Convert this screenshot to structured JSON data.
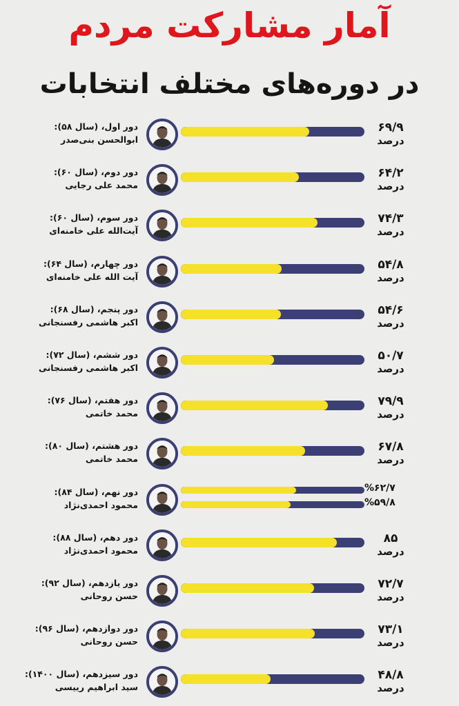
{
  "header": {
    "title": "آمار مشارکت مردم",
    "subtitle": "در دوره‌های مختلف انتخابات"
  },
  "colors": {
    "accent": "#e0161d",
    "track": "#3c3f73",
    "fill": "#f5e129",
    "background": "#ededeb"
  },
  "chart_data": {
    "type": "bar",
    "orientation": "horizontal",
    "title": "آمار مشارکت مردم",
    "subtitle": "در دوره‌های مختلف انتخابات",
    "xlim": [
      0,
      100
    ],
    "unit": "درصد",
    "rows": [
      {
        "period": "دور اول، (سال ۵۸):",
        "name": "ابوالحسن بنی‌صدر",
        "values": [
          69.9
        ],
        "labels": [
          "۶۹/۹"
        ],
        "unit_label": "درصد",
        "icon": "portrait-icon"
      },
      {
        "period": "دور دوم، (سال ۶۰):",
        "name": "محمد علی رجایی",
        "values": [
          64.2
        ],
        "labels": [
          "۶۴/۲"
        ],
        "unit_label": "درصد",
        "icon": "portrait-icon"
      },
      {
        "period": "دور سوم، (سال ۶۰):",
        "name": "آیت‌الله علی خامنه‌ای",
        "values": [
          74.3
        ],
        "labels": [
          "۷۴/۳"
        ],
        "unit_label": "درصد",
        "icon": "portrait-icon"
      },
      {
        "period": "دور چهارم، (سال ۶۴):",
        "name": "آیت الله علی خامنه‌ای",
        "values": [
          54.8
        ],
        "labels": [
          "۵۴/۸"
        ],
        "unit_label": "درصد",
        "icon": "portrait-icon"
      },
      {
        "period": "دور پنجم، (سال ۶۸):",
        "name": "اکبر هاشمی رفسنجانی",
        "values": [
          54.6
        ],
        "labels": [
          "۵۴/۶"
        ],
        "unit_label": "درصد",
        "icon": "portrait-icon"
      },
      {
        "period": "دور ششم، (سال ۷۲):",
        "name": "اکبر هاشمی رفسنجانی",
        "values": [
          50.7
        ],
        "labels": [
          "۵۰/۷"
        ],
        "unit_label": "درصد",
        "icon": "portrait-icon"
      },
      {
        "period": "دور هفتم، (سال ۷۶):",
        "name": "محمد خاتمی",
        "values": [
          79.9
        ],
        "labels": [
          "۷۹/۹"
        ],
        "unit_label": "درصد",
        "icon": "portrait-icon"
      },
      {
        "period": "دور هشتم، (سال ۸۰):",
        "name": "محمد خاتمی",
        "values": [
          67.8
        ],
        "labels": [
          "۶۷/۸"
        ],
        "unit_label": "درصد",
        "icon": "portrait-icon"
      },
      {
        "period": "دور نهم، (سال ۸۴):",
        "name": "محمود احمدی‌نژاد",
        "values": [
          62.7,
          59.8
        ],
        "labels": [
          "%۶۲/۷",
          "%۵۹/۸"
        ],
        "unit_label": "",
        "icon": "portrait-icon"
      },
      {
        "period": "دور دهم، (سال ۸۸):",
        "name": "محمود احمدی‌نژاد",
        "values": [
          85
        ],
        "labels": [
          "۸۵"
        ],
        "unit_label": "درصد",
        "icon": "portrait-icon"
      },
      {
        "period": "دور یازدهم، (سال ۹۲):",
        "name": "حسن روحانی",
        "values": [
          72.7
        ],
        "labels": [
          "۷۲/۷"
        ],
        "unit_label": "درصد",
        "icon": "portrait-icon"
      },
      {
        "period": "دور دوازدهم، (سال ۹۶):",
        "name": "حسن روحانی",
        "values": [
          73.1
        ],
        "labels": [
          "۷۳/۱"
        ],
        "unit_label": "درصد",
        "icon": "portrait-icon"
      },
      {
        "period": "دور سیزدهم، (سال ۱۴۰۰):",
        "name": "سید ابراهیم رییسی",
        "values": [
          48.8
        ],
        "labels": [
          "۴۸/۸"
        ],
        "unit_label": "درصد",
        "icon": "portrait-icon"
      }
    ]
  }
}
